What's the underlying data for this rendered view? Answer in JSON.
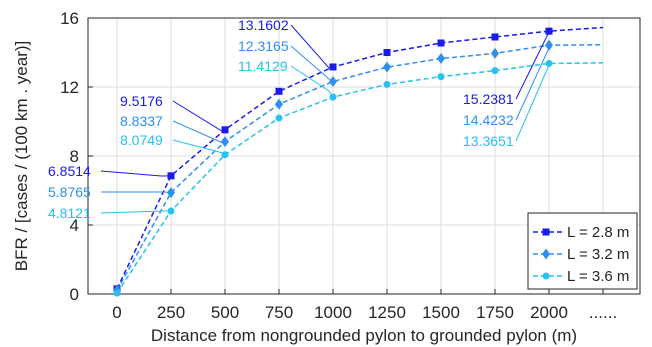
{
  "chart_data": {
    "type": "line",
    "xlabel": "Distance from nongrounded pylon to grounded pylon (m)",
    "ylabel": "BFR / [cases / (100 km . year)]",
    "x_ticks": [
      "0",
      "250",
      "500",
      "750",
      "1000",
      "1250",
      "1500",
      "1750",
      "2000",
      "......"
    ],
    "ylim": [
      0,
      16
    ],
    "y_ticks": [
      0,
      4,
      8,
      12,
      16
    ],
    "grid": true,
    "legend_position": "bottom-right",
    "series": [
      {
        "name": "L = 2.8 m",
        "color": "#1a1aeb",
        "marker": "square",
        "values": [
          0.3,
          6.8514,
          9.5176,
          11.75,
          13.1602,
          14.0,
          14.55,
          14.9,
          15.2381,
          15.45
        ]
      },
      {
        "name": "L = 3.2 m",
        "color": "#2f8ff0",
        "marker": "diamond",
        "values": [
          0.2,
          5.8765,
          8.8337,
          11.0,
          12.3165,
          13.15,
          13.65,
          13.95,
          14.4232,
          14.45
        ]
      },
      {
        "name": "L = 3.6 m",
        "color": "#26c2f0",
        "marker": "circle",
        "values": [
          0.05,
          4.8121,
          8.0749,
          10.2,
          11.4129,
          12.15,
          12.6,
          12.95,
          13.3651,
          13.4
        ]
      }
    ],
    "annotations": [
      {
        "text": "6.8514",
        "series": 0,
        "point": 1
      },
      {
        "text": "5.8765",
        "series": 1,
        "point": 1
      },
      {
        "text": "4.8121",
        "series": 2,
        "point": 1
      },
      {
        "text": "9.5176",
        "series": 0,
        "point": 2
      },
      {
        "text": "8.8337",
        "series": 1,
        "point": 2
      },
      {
        "text": "8.0749",
        "series": 2,
        "point": 2
      },
      {
        "text": "13.1602",
        "series": 0,
        "point": 4
      },
      {
        "text": "12.3165",
        "series": 1,
        "point": 4
      },
      {
        "text": "11.4129",
        "series": 2,
        "point": 4
      },
      {
        "text": "15.2381",
        "series": 0,
        "point": 8
      },
      {
        "text": "14.4232",
        "series": 1,
        "point": 8
      },
      {
        "text": "13.3651",
        "series": 2,
        "point": 8
      }
    ]
  }
}
